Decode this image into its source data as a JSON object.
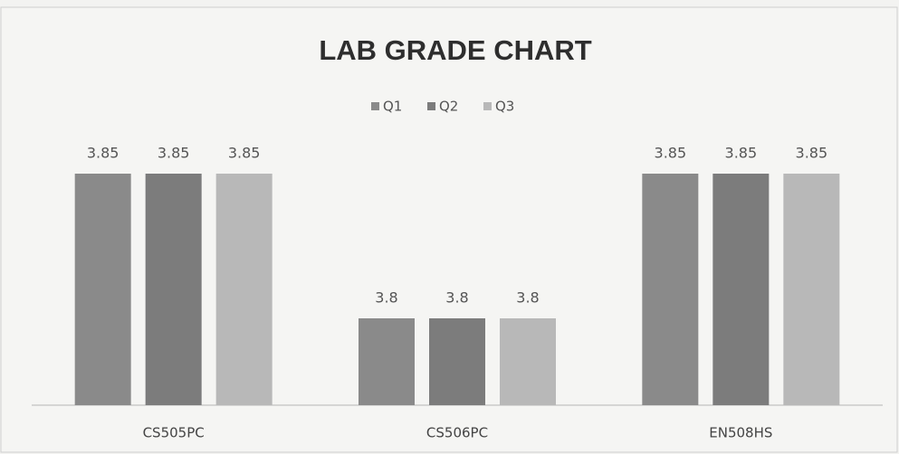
{
  "chart_data": {
    "type": "bar",
    "title": "LAB GRADE CHART",
    "categories": [
      "CS505PC",
      "CS506PC",
      "EN508HS"
    ],
    "series": [
      {
        "name": "Q1",
        "color": "#8a8a8a",
        "values": [
          3.85,
          3.8,
          3.85
        ]
      },
      {
        "name": "Q2",
        "color": "#7c7c7c",
        "values": [
          3.85,
          3.8,
          3.85
        ]
      },
      {
        "name": "Q3",
        "color": "#b8b8b8",
        "values": [
          3.85,
          3.8,
          3.85
        ]
      }
    ],
    "ylim": [
      3.77,
      3.86
    ],
    "legend": "top",
    "data_labels": true
  }
}
